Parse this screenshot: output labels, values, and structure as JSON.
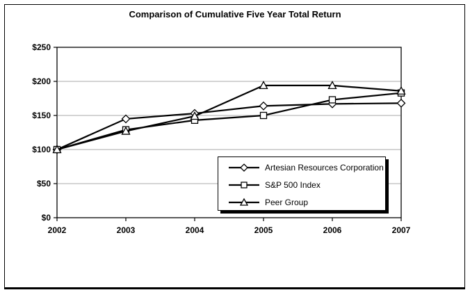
{
  "figure": {
    "background_color": "#ffffff",
    "border_color": "#000000"
  },
  "chart_data": {
    "type": "line",
    "title": "Comparison of Cumulative Five Year Total Return",
    "x": [
      2002,
      2003,
      2004,
      2005,
      2006,
      2007
    ],
    "x_tick_labels": [
      "2002",
      "2003",
      "2004",
      "2005",
      "2006",
      "2007"
    ],
    "y_tick_labels": [
      "$0",
      "$50",
      "$100",
      "$150",
      "$200",
      "$250"
    ],
    "y_ticks": [
      0,
      50,
      100,
      150,
      200,
      250
    ],
    "ylim": [
      0,
      250
    ],
    "xlabel": "",
    "ylabel": "",
    "grid": true,
    "grid_color": "#a8a8a8",
    "line_color": "#000000",
    "marker_fill": "#ffffff",
    "legend_position": "inside-bottom-right",
    "legend_shadow": true,
    "series": [
      {
        "name": "Artesian Resources Corporation",
        "marker": "diamond",
        "values": [
          100,
          145,
          153,
          164,
          167,
          168
        ]
      },
      {
        "name": "S&P 500 Index",
        "marker": "square",
        "values": [
          100,
          129,
          143,
          150,
          173,
          183
        ]
      },
      {
        "name": "Peer Group",
        "marker": "triangle",
        "values": [
          100,
          127,
          149,
          194,
          194,
          186
        ]
      }
    ]
  }
}
